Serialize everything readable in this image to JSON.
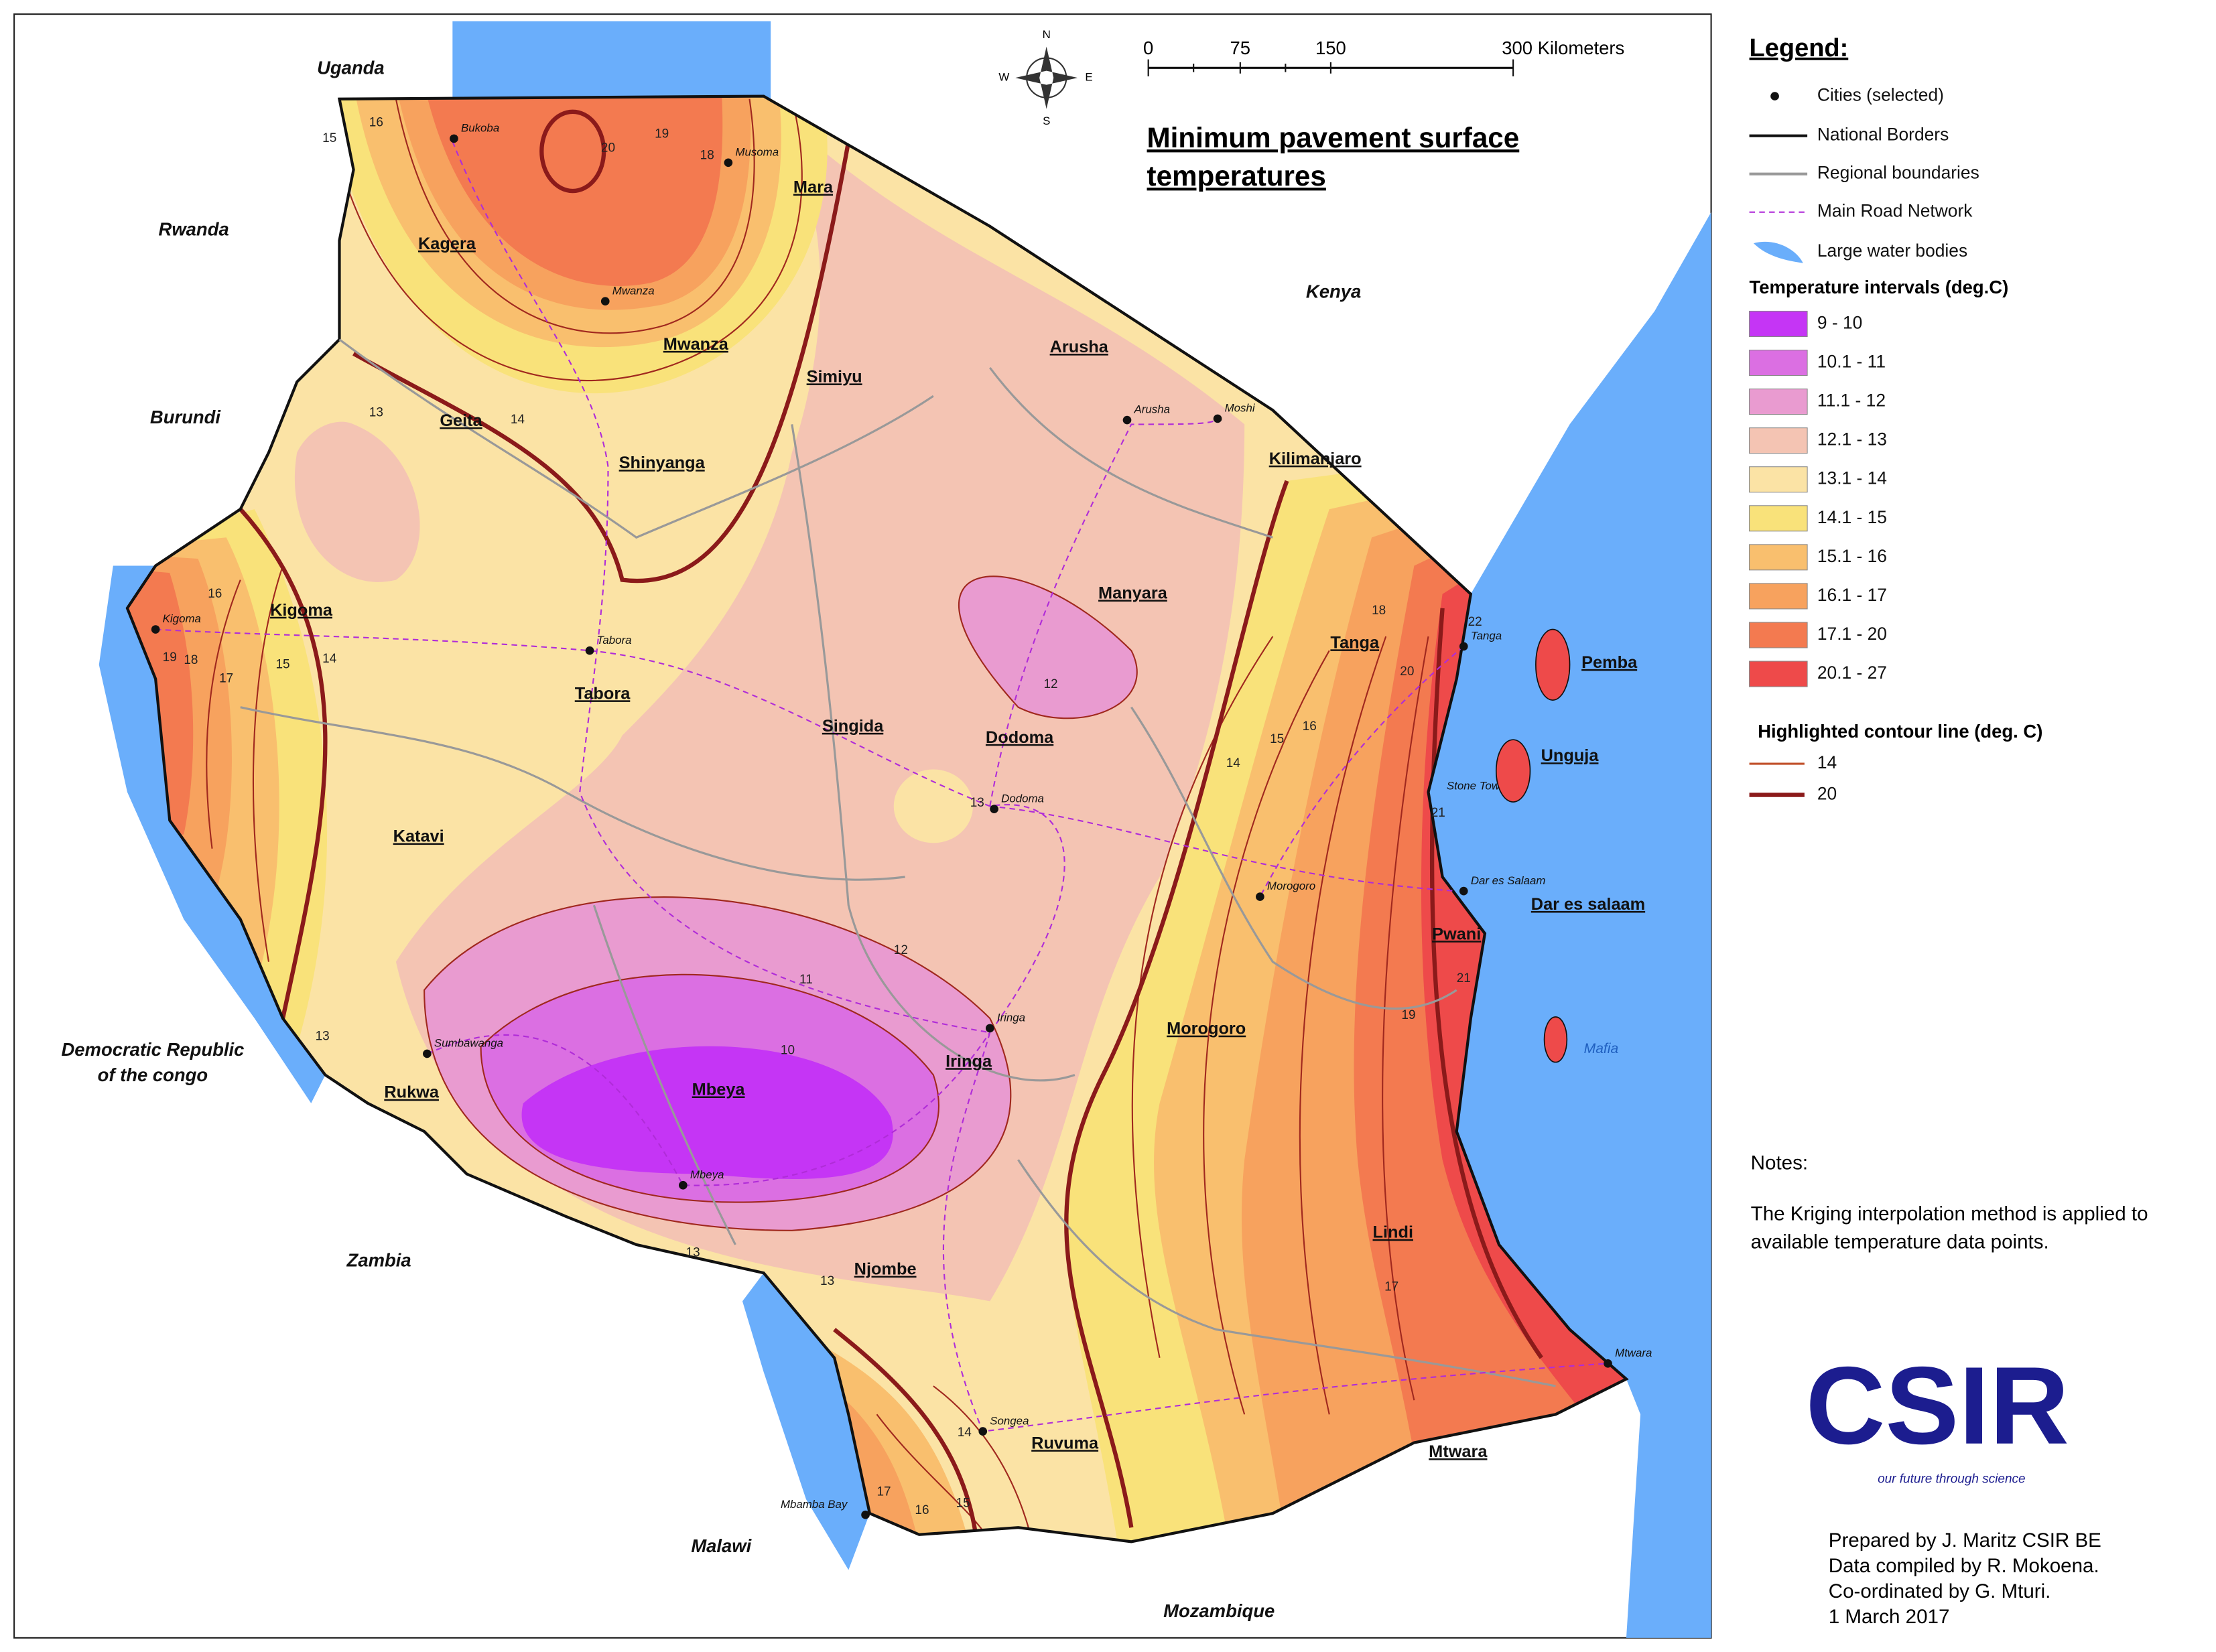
{
  "title": [
    "Minimum pavement surface",
    "temperatures"
  ],
  "scale_bar": [
    "0",
    "75",
    "150",
    "300 Kilometers"
  ],
  "compass": [
    "N",
    "E",
    "S",
    "W"
  ],
  "legend": {
    "title": "Legend:",
    "items": [
      "Cities (selected)",
      "National Borders",
      "Regional boundaries",
      "Main Road Network",
      "Large water bodies"
    ],
    "intervals_title": "Temperature intervals (deg.C)",
    "intervals": [
      {
        "label": "9 - 10",
        "color": "#c535f5"
      },
      {
        "label": "10.1 - 11",
        "color": "#db6fe2"
      },
      {
        "label": "11.1 - 12",
        "color": "#e99bd0"
      },
      {
        "label": "12.1 - 13",
        "color": "#f4c4b3"
      },
      {
        "label": "13.1 - 14",
        "color": "#fbe3a5"
      },
      {
        "label": "14.1 - 15",
        "color": "#f9e27a"
      },
      {
        "label": "15.1 - 16",
        "color": "#f9bf6e"
      },
      {
        "label": "16.1 - 17",
        "color": "#f7a25e"
      },
      {
        "label": "17.1 - 20",
        "color": "#f37a50"
      },
      {
        "label": "20.1 - 27",
        "color": "#ee4a4a"
      }
    ],
    "contour_title": "Highlighted contour line (deg. C)",
    "contours": [
      {
        "label": "14",
        "color": "#c0502a"
      },
      {
        "label": "20",
        "color": "#8b1a1a"
      }
    ]
  },
  "countries": [
    "Uganda",
    "Rwanda",
    "Kenya",
    "Burundi",
    "Democratic Republic",
    "of the congo",
    "Zambia",
    "Malawi",
    "Mozambique"
  ],
  "regions": [
    "Kagera",
    "Mara",
    "Mwanza",
    "Simiyu",
    "Geita",
    "Shinyanga",
    "Arusha",
    "Kilimanjaro",
    "Kigoma",
    "Manyara",
    "Tanga",
    "Tabora",
    "Singida",
    "Dodoma",
    "Pemba",
    "Unguja",
    "Katavi",
    "Dar es salaam",
    "Pwani",
    "Morogoro",
    "Iringa",
    "Rukwa",
    "Mbeya",
    "Lindi",
    "Njombe",
    "Ruvuma",
    "Mtwara"
  ],
  "cities": [
    "Bukoba",
    "Musoma",
    "Mwanza",
    "Arusha",
    "Moshi",
    "Tanga",
    "Kigoma",
    "Tabora",
    "Dodoma",
    "Stone Town",
    "Morogoro",
    "Dar es Salaam",
    "Iringa",
    "Sumbawanga",
    "Mbeya",
    "Songea",
    "Mtwara",
    "Mbamba Bay"
  ],
  "islands": [
    "Mafia"
  ],
  "contour_labels": [
    15,
    16,
    20,
    19,
    18,
    13,
    14,
    16,
    15,
    14,
    19,
    18,
    17,
    13,
    12,
    13,
    12,
    11,
    10,
    13,
    13,
    14,
    15,
    16,
    18,
    20,
    22,
    21,
    19,
    21,
    17,
    14,
    15,
    16,
    17
  ],
  "notes": {
    "title": "Notes:",
    "text": [
      "The Kriging interpolation method is applied to",
      "available temperature data points."
    ]
  },
  "logo": {
    "name": "CSIR",
    "tagline": "our future through science"
  },
  "credits": [
    "Prepared by  J. Maritz CSIR BE",
    "Data compiled by R. Mokoena.",
    "Co-ordinated by G. Mturi.",
    "1 March 2017"
  ]
}
